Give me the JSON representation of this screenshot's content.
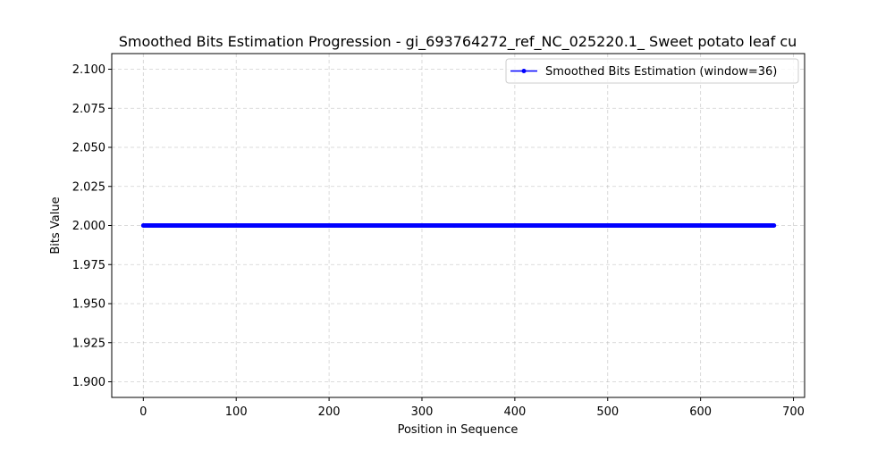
{
  "chart_data": {
    "type": "line",
    "title": "Smoothed Bits Estimation Progression - gi_693764272_ref_NC_025220.1_ Sweet potato leaf cu",
    "xlabel": "Position in Sequence",
    "ylabel": "Bits Value",
    "xlim": [
      -34,
      712
    ],
    "ylim": [
      1.89,
      2.11
    ],
    "xticks": [
      0,
      100,
      200,
      300,
      400,
      500,
      600,
      700
    ],
    "xtick_labels": [
      "0",
      "100",
      "200",
      "300",
      "400",
      "500",
      "600",
      "700"
    ],
    "yticks": [
      1.9,
      1.925,
      1.95,
      1.975,
      2.0,
      2.025,
      2.05,
      2.075,
      2.1
    ],
    "ytick_labels": [
      "1.900",
      "1.925",
      "1.950",
      "1.975",
      "2.000",
      "2.025",
      "2.050",
      "2.075",
      "2.100"
    ],
    "grid": true,
    "legend_position": "top-right",
    "series": [
      {
        "name": "Smoothed Bits Estimation (window=36)",
        "color": "#0000ff",
        "marker": "circle",
        "x_start": 0,
        "x_end": 679,
        "x_step": 1,
        "constant_value": 2.0
      }
    ]
  }
}
